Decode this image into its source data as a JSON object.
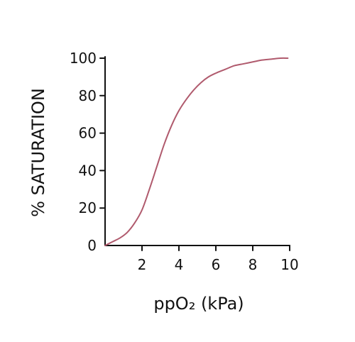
{
  "chart_data": {
    "type": "line",
    "title": "",
    "xlabel": "ppO₂ (kPa)",
    "ylabel": "% SATURATION",
    "xlim": [
      0,
      10
    ],
    "ylim": [
      0,
      100
    ],
    "x_ticks": [
      2,
      4,
      6,
      8,
      10
    ],
    "y_ticks": [
      0,
      20,
      40,
      60,
      80,
      100
    ],
    "x_tick_labels": [
      "2",
      "4",
      "6",
      "8",
      "10"
    ],
    "y_tick_labels": [
      "0",
      "20",
      "40",
      "60",
      "80",
      "100"
    ],
    "grid": false,
    "legend": "none",
    "series": [
      {
        "x": [
          0,
          0.4,
          0.8,
          1.2,
          1.6,
          2.0,
          2.4,
          2.8,
          3.2,
          3.6,
          4.0,
          4.4,
          4.8,
          5.2,
          5.6,
          6.0,
          6.5,
          7.0,
          7.5,
          8.0,
          8.5,
          9.0,
          9.5,
          9.9
        ],
        "y": [
          0,
          2,
          4,
          7,
          12,
          19,
          30,
          42,
          54,
          64,
          72,
          78,
          83,
          87,
          90,
          92,
          94,
          96,
          97,
          98,
          99,
          99.5,
          100,
          100
        ],
        "color": "#b05a6d"
      }
    ],
    "axis_color": "#111111"
  }
}
